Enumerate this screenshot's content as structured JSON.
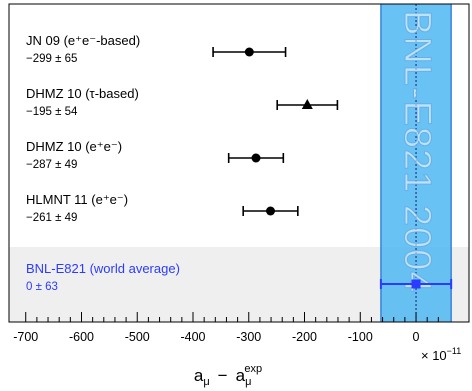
{
  "chart_data": {
    "type": "scatter",
    "x_label_main": "a",
    "x_label_main_sub": "μ",
    "x_label_minus": "−",
    "x_label_exp_base": "a",
    "x_label_exp_sub": "μ",
    "x_label_exp_sup": "exp",
    "x_multiplier": "× 10",
    "x_multiplier_exp": "−11",
    "xlim": [
      -730,
      95
    ],
    "x_ticks": [
      -700,
      -600,
      -500,
      -400,
      -300,
      -200,
      -100,
      0
    ],
    "x_tick_labels": [
      "-700",
      "-600",
      "-500",
      "-400",
      "-300",
      "-200",
      "-100",
      "0"
    ],
    "band": {
      "center": 0,
      "half_width": 63,
      "label": "BNL-E821 2004",
      "color": "#4fb7f2"
    },
    "entries": [
      {
        "label": "JN 09 (e⁺e⁻-based)",
        "value_text": "−299 ± 65",
        "value": -299,
        "err": 65,
        "marker": "circle",
        "color": "#000000"
      },
      {
        "label": "DHMZ 10 (τ-based)",
        "value_text": "−195 ± 54",
        "value": -195,
        "err": 54,
        "marker": "triangle",
        "color": "#000000"
      },
      {
        "label": "DHMZ 10 (e⁺e⁻)",
        "value_text": "−287 ± 49",
        "value": -287,
        "err": 49,
        "marker": "circle",
        "color": "#000000"
      },
      {
        "label": "HLMNT 11 (e⁺e⁻)",
        "value_text": "−261 ± 49",
        "value": -261,
        "err": 49,
        "marker": "circle",
        "color": "#000000"
      },
      {
        "label": "BNL-E821 (world average)",
        "value_text": "0 ± 63",
        "value": 0,
        "err": 63,
        "marker": "square",
        "color": "#2b3bff",
        "highlight": true
      }
    ],
    "grid": false,
    "legend": "none"
  }
}
